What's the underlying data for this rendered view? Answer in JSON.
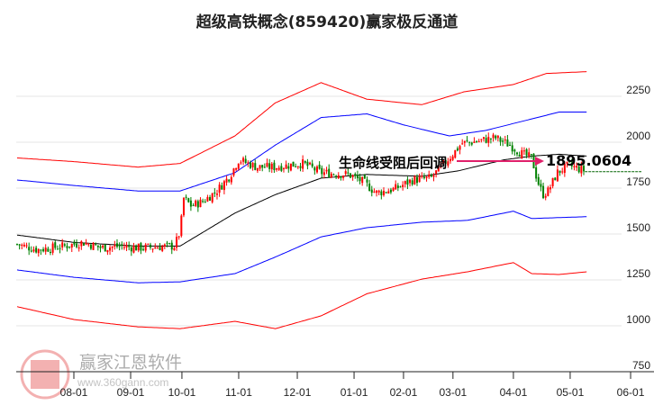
{
  "chart_data": {
    "type": "candlestick",
    "title": "超级高铁概念(859420)赢家极反通道",
    "ylim": [
      750,
      2350
    ],
    "y_ticks": [
      750,
      1000,
      1250,
      1500,
      1750,
      2000,
      2250
    ],
    "x_ticks": [
      "08-01",
      "09-01",
      "10-01",
      "11-01",
      "12-01",
      "01-01",
      "02-01",
      "03-01",
      "04-01",
      "05-01",
      "06-01"
    ],
    "x_tick_days": [
      0,
      31,
      59,
      90,
      122,
      153,
      180,
      207,
      240,
      271,
      304
    ],
    "close_keypoints": [
      [
        -31,
        1410
      ],
      [
        -20,
        1380
      ],
      [
        -5,
        1400
      ],
      [
        5,
        1420
      ],
      [
        15,
        1390
      ],
      [
        25,
        1400
      ],
      [
        35,
        1390
      ],
      [
        55,
        1400
      ],
      [
        58,
        1480
      ],
      [
        60,
        1660
      ],
      [
        64,
        1620
      ],
      [
        70,
        1640
      ],
      [
        78,
        1700
      ],
      [
        85,
        1780
      ],
      [
        90,
        1870
      ],
      [
        95,
        1850
      ],
      [
        100,
        1830
      ],
      [
        110,
        1830
      ],
      [
        125,
        1850
      ],
      [
        135,
        1800
      ],
      [
        150,
        1790
      ],
      [
        158,
        1750
      ],
      [
        165,
        1690
      ],
      [
        175,
        1710
      ],
      [
        185,
        1760
      ],
      [
        195,
        1770
      ],
      [
        205,
        1880
      ],
      [
        212,
        1960
      ],
      [
        220,
        1970
      ],
      [
        230,
        1990
      ],
      [
        238,
        1950
      ],
      [
        245,
        1900
      ],
      [
        250,
        1880
      ],
      [
        253,
        1760
      ],
      [
        256,
        1680
      ],
      [
        259,
        1700
      ],
      [
        264,
        1800
      ],
      [
        270,
        1840
      ],
      [
        276,
        1820
      ],
      [
        279,
        1810
      ]
    ],
    "series": [
      {
        "name": "upper-outer",
        "color": "#ff0000",
        "points": [
          [
            -31,
            1880
          ],
          [
            0,
            1860
          ],
          [
            35,
            1830
          ],
          [
            58,
            1850
          ],
          [
            88,
            2000
          ],
          [
            110,
            2180
          ],
          [
            135,
            2290
          ],
          [
            160,
            2200
          ],
          [
            190,
            2170
          ],
          [
            213,
            2240
          ],
          [
            240,
            2280
          ],
          [
            258,
            2340
          ],
          [
            280,
            2350
          ]
        ]
      },
      {
        "name": "upper-inner",
        "color": "#0000ff",
        "points": [
          [
            -31,
            1760
          ],
          [
            0,
            1730
          ],
          [
            35,
            1700
          ],
          [
            58,
            1700
          ],
          [
            88,
            1800
          ],
          [
            110,
            1950
          ],
          [
            135,
            2100
          ],
          [
            160,
            2120
          ],
          [
            180,
            2060
          ],
          [
            205,
            2000
          ],
          [
            225,
            2030
          ],
          [
            245,
            2080
          ],
          [
            265,
            2130
          ],
          [
            280,
            2130
          ]
        ]
      },
      {
        "name": "middle",
        "color": "#000000",
        "points": [
          [
            -31,
            1460
          ],
          [
            0,
            1420
          ],
          [
            35,
            1400
          ],
          [
            58,
            1400
          ],
          [
            88,
            1580
          ],
          [
            110,
            1680
          ],
          [
            135,
            1770
          ],
          [
            160,
            1790
          ],
          [
            190,
            1780
          ],
          [
            210,
            1810
          ],
          [
            235,
            1870
          ],
          [
            250,
            1890
          ],
          [
            265,
            1900
          ],
          [
            280,
            1890
          ]
        ]
      },
      {
        "name": "lower-inner",
        "color": "#0000ff",
        "points": [
          [
            -31,
            1270
          ],
          [
            0,
            1230
          ],
          [
            35,
            1200
          ],
          [
            58,
            1205
          ],
          [
            88,
            1250
          ],
          [
            110,
            1340
          ],
          [
            135,
            1450
          ],
          [
            160,
            1500
          ],
          [
            190,
            1530
          ],
          [
            215,
            1540
          ],
          [
            240,
            1590
          ],
          [
            250,
            1550
          ],
          [
            265,
            1555
          ],
          [
            280,
            1560
          ]
        ]
      },
      {
        "name": "lower-outer",
        "color": "#ff0000",
        "points": [
          [
            -31,
            1070
          ],
          [
            0,
            1000
          ],
          [
            35,
            960
          ],
          [
            58,
            950
          ],
          [
            88,
            990
          ],
          [
            110,
            950
          ],
          [
            135,
            1020
          ],
          [
            160,
            1140
          ],
          [
            190,
            1220
          ],
          [
            215,
            1260
          ],
          [
            240,
            1310
          ],
          [
            250,
            1250
          ],
          [
            265,
            1245
          ],
          [
            280,
            1260
          ]
        ]
      }
    ],
    "annotation": {
      "text": "生命线受阻后回调",
      "value": "1895.0604",
      "arrow_color": "#e0206a"
    },
    "last_price": 1805
  },
  "watermark": {
    "name": "赢家江恩软件",
    "seal": "江赢恩家",
    "url": "www.360gann.com"
  }
}
